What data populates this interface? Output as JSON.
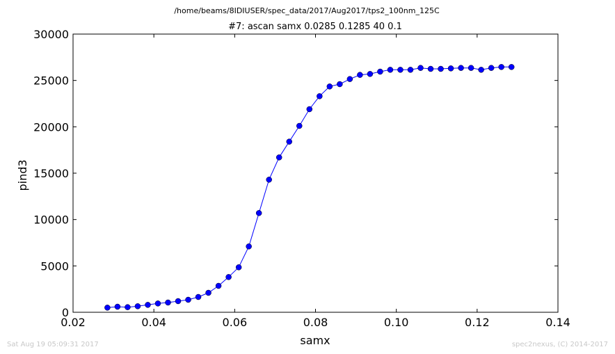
{
  "chart_data": {
    "type": "line",
    "suptitle": "/home/beams/8IDIUSER/spec_data/2017/Aug2017/tps2_100nm_125C",
    "title": "#7: ascan  samx 0.0285 0.1285  40 0.1",
    "xlabel": "samx",
    "ylabel": "pind3",
    "xlim": [
      0.02,
      0.14
    ],
    "ylim": [
      0,
      30000
    ],
    "x_ticks": [
      "0.02",
      "0.04",
      "0.06",
      "0.08",
      "0.10",
      "0.12",
      "0.14"
    ],
    "y_ticks": [
      "0",
      "5000",
      "10000",
      "15000",
      "20000",
      "25000",
      "30000"
    ],
    "grid": false,
    "legend": "none",
    "series_color": "#0000ff",
    "marker": "circle",
    "series": [
      {
        "x": [
          0.0285,
          0.031,
          0.0335,
          0.036,
          0.0385,
          0.041,
          0.0435,
          0.046,
          0.0485,
          0.051,
          0.0535,
          0.056,
          0.0585,
          0.061,
          0.0635,
          0.066,
          0.0685,
          0.071,
          0.0735,
          0.076,
          0.0785,
          0.081,
          0.0835,
          0.086,
          0.0885,
          0.091,
          0.0935,
          0.096,
          0.0985,
          0.101,
          0.1035,
          0.106,
          0.1085,
          0.111,
          0.1135,
          0.116,
          0.1185,
          0.121,
          0.1235,
          0.126,
          0.1285
        ],
        "y": [
          500,
          600,
          550,
          650,
          800,
          950,
          1050,
          1200,
          1350,
          1650,
          2100,
          2850,
          3800,
          4850,
          7100,
          10700,
          14300,
          16700,
          18400,
          20100,
          21900,
          23300,
          24350,
          24600,
          25150,
          25600,
          25700,
          25950,
          26150,
          26150,
          26150,
          26350,
          26250,
          26250,
          26300,
          26350,
          26350,
          26150,
          26350,
          26450,
          26450
        ]
      }
    ]
  },
  "footer": {
    "timestamp": "Sat Aug 19 05:09:31 2017",
    "credit": "spec2nexus, (C) 2014-2017"
  }
}
